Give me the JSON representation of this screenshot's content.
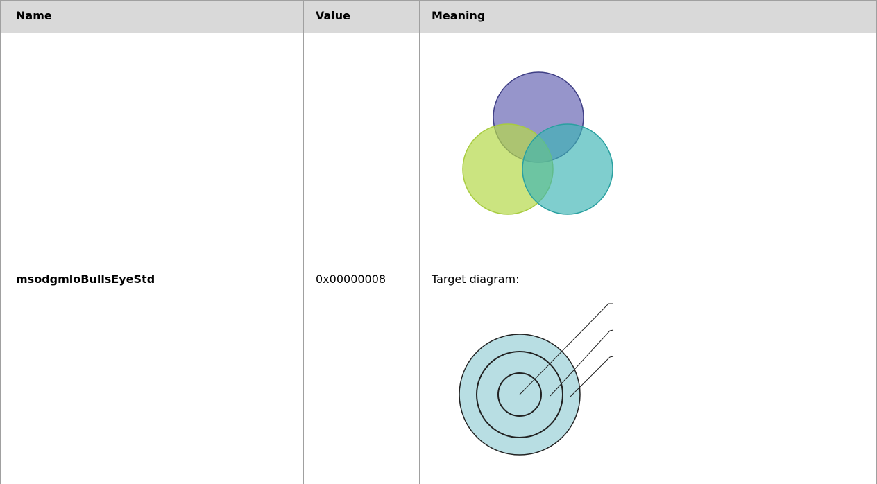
{
  "table": {
    "header": [
      "Name",
      "Value",
      "Meaning"
    ],
    "rows": [
      {
        "name": "msodgmloBullsEyeStd",
        "value": "0x00000008",
        "meaning": "Target diagram:"
      }
    ]
  }
}
